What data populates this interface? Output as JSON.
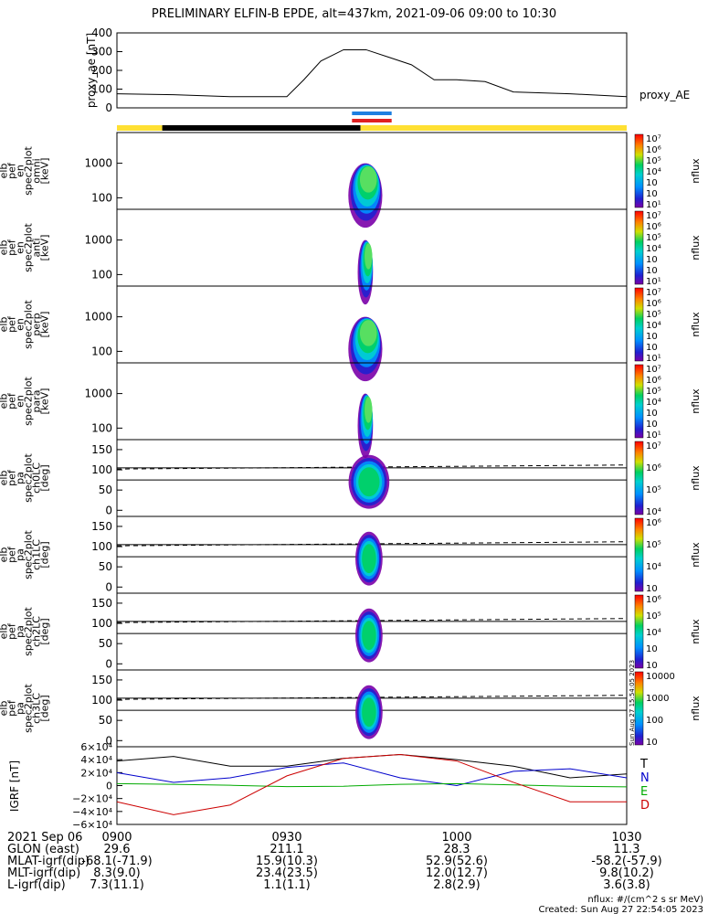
{
  "title": "PRELIMINARY ELFIN-B EPDE, alt=437km, 2021-09-06 09:00 to 10:30",
  "colors": {
    "yellow": "#ffe033",
    "black": "#000000",
    "blue": "#1e7fe0",
    "red": "#e02020",
    "trace_T": "#000000",
    "trace_N": "#0000cc",
    "trace_E": "#00aa00",
    "trace_D": "#cc0000"
  },
  "chart_data": [
    {
      "type": "line",
      "ylabel": "proxy_ae [nT]",
      "legend": "proxy_AE",
      "ylim": [
        0,
        400
      ],
      "yticks": [
        "400",
        "300",
        "200",
        "100",
        "0"
      ],
      "x_minutes": [
        0,
        10,
        20,
        30,
        33,
        36,
        40,
        44,
        48,
        52,
        56,
        60,
        65,
        70,
        75,
        80,
        90
      ],
      "values": [
        75,
        70,
        60,
        60,
        150,
        250,
        310,
        310,
        270,
        230,
        150,
        150,
        140,
        85,
        80,
        75,
        60
      ]
    },
    {
      "type": "bar",
      "name": "sector bars",
      "segments": [
        {
          "start": 0,
          "end": 8.0,
          "color": "yellow"
        },
        {
          "start": 8.0,
          "end": 43.0,
          "color": "black"
        },
        {
          "start": 43.0,
          "end": 90,
          "color": "yellow"
        }
      ],
      "science_zone_minutes": [
        41.5,
        48.5
      ]
    },
    {
      "type": "heatmap",
      "ylabel": "elb pef en spec2plot omni [keV]",
      "yticks": [
        "1000",
        "100"
      ],
      "cbar_label": "nflux",
      "cbar_ticks": [
        "10⁷",
        "10⁶",
        "10⁵",
        "10⁴",
        "10⁳",
        "10⁲",
        "10¹"
      ]
    },
    {
      "type": "heatmap",
      "ylabel": "elb pef en spec2plot anti [keV]",
      "yticks": [
        "1000",
        "100"
      ],
      "cbar_label": "nflux",
      "cbar_ticks": [
        "10⁷",
        "10⁶",
        "10⁵",
        "10⁴",
        "10⁳",
        "10⁲",
        "10¹"
      ]
    },
    {
      "type": "heatmap",
      "ylabel": "elb pef en spec2plot perp [keV]",
      "yticks": [
        "1000",
        "100"
      ],
      "cbar_label": "nflux",
      "cbar_ticks": [
        "10⁷",
        "10⁶",
        "10⁵",
        "10⁴",
        "10⁳",
        "10⁲",
        "10¹"
      ]
    },
    {
      "type": "heatmap",
      "ylabel": "elb pef en spec2plot para [keV]",
      "yticks": [
        "1000",
        "100"
      ],
      "cbar_label": "nflux",
      "cbar_ticks": [
        "10⁷",
        "10⁶",
        "10⁵",
        "10⁴",
        "10⁳",
        "10⁲",
        "10¹"
      ]
    },
    {
      "type": "heatmap",
      "ylabel": "elb pef pa spec2plot ch0LC [deg]",
      "yticks": [
        "150",
        "100",
        "50",
        "0"
      ],
      "cbar_label": "nflux",
      "cbar_ticks": [
        "10⁷",
        "10⁶",
        "10⁵",
        "10⁴"
      ]
    },
    {
      "type": "heatmap",
      "ylabel": "elb pef pa spec2plot ch1LC [deg]",
      "yticks": [
        "150",
        "100",
        "50",
        "0"
      ],
      "cbar_label": "nflux",
      "cbar_ticks": [
        "10⁶",
        "10⁵",
        "10⁴",
        "10⁳"
      ]
    },
    {
      "type": "heatmap",
      "ylabel": "elb pef pa spec2plot ch2LC [deg]",
      "yticks": [
        "150",
        "100",
        "50",
        "0"
      ],
      "cbar_label": "nflux",
      "cbar_ticks": [
        "10⁶",
        "10⁵",
        "10⁴",
        "10⁳",
        "10⁲"
      ]
    },
    {
      "type": "heatmap",
      "ylabel": "elb pef pa spec2plot ch3LC [deg]",
      "yticks": [
        "150",
        "100",
        "50",
        "0"
      ],
      "cbar_label": "nflux",
      "cbar_ticks": [
        "10000",
        "1000",
        "100",
        "10"
      ]
    },
    {
      "type": "line",
      "ylabel": "IGRF [nT]",
      "ylim": [
        -60000,
        60000
      ],
      "yticks": [
        "6×10⁴",
        "4×10⁴",
        "2×10⁴",
        "0",
        "−2×10⁴",
        "−4×10⁴",
        "−6×10⁴"
      ],
      "x_minutes": [
        0,
        10,
        20,
        30,
        40,
        50,
        60,
        70,
        80,
        90
      ],
      "series": [
        {
          "name": "T",
          "values": [
            38000,
            45000,
            30000,
            30000,
            42000,
            48000,
            40000,
            30000,
            12000,
            18000
          ]
        },
        {
          "name": "N",
          "values": [
            20000,
            5000,
            12000,
            28000,
            35000,
            12000,
            0,
            22000,
            26000,
            12000
          ]
        },
        {
          "name": "E",
          "values": [
            3000,
            2000,
            500,
            -1500,
            -1000,
            2000,
            3000,
            1000,
            -1000,
            -2000
          ]
        },
        {
          "name": "D",
          "values": [
            -25000,
            -45000,
            -30000,
            15000,
            42000,
            48000,
            38000,
            5000,
            -25000,
            -25000
          ]
        }
      ]
    }
  ],
  "timestamp_vertical": "Sun Aug 27 15:54:05 2023",
  "footer": {
    "date": "2021 Sep 06",
    "tick_labels": [
      "0900",
      "0930",
      "1000",
      "1030"
    ],
    "rows": [
      {
        "label": "GLON (east)",
        "values": [
          "29.6",
          "211.1",
          "28.3",
          "11.3"
        ]
      },
      {
        "label": "MLAT-igrf(dip)",
        "values": [
          "-68.1(-71.9)",
          "15.9(10.3)",
          "52.9(52.6)",
          "-58.2(-57.9)"
        ]
      },
      {
        "label": "MLT-igrf(dip)",
        "values": [
          "8.3(9.0)",
          "23.4(23.5)",
          "12.0(12.7)",
          "9.8(10.2)"
        ]
      },
      {
        "label": "L-igrf(dip)",
        "values": [
          "7.3(11.1)",
          "1.1(1.1)",
          "2.8(2.9)",
          "3.6(3.8)"
        ]
      }
    ],
    "units_note": "nflux: #/(cm^2 s sr MeV)",
    "created": "Created: Sun Aug 27 22:54:05 2023"
  }
}
